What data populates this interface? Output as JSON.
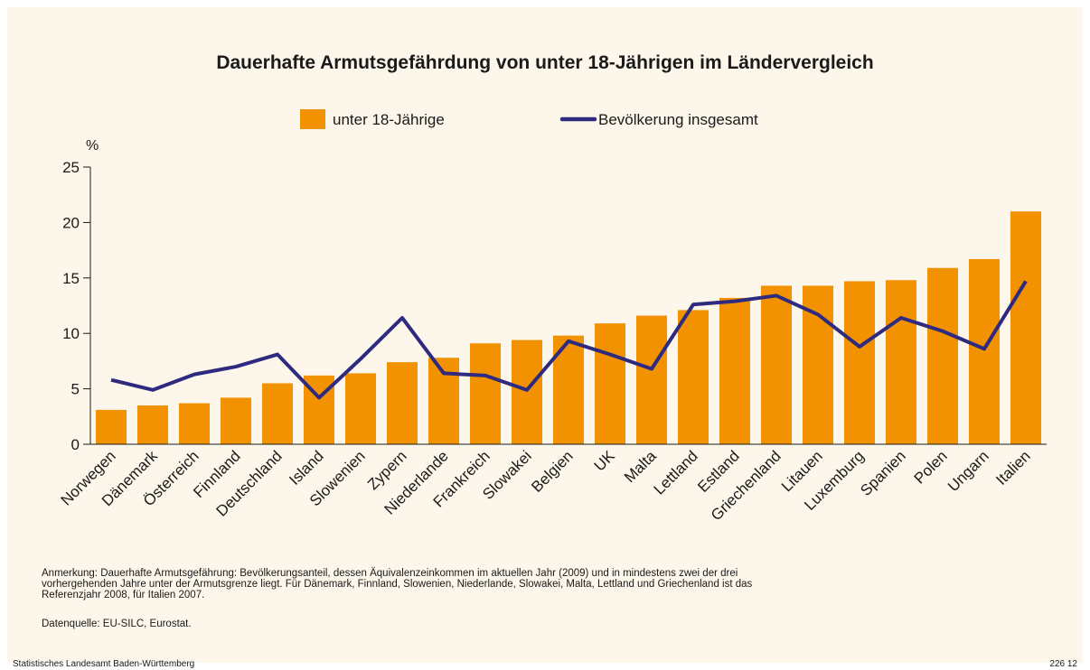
{
  "chart_data": {
    "type": "bar_line",
    "title": "Dauerhafte Armutsgefährdung von unter 18-Jährigen im Ländervergleich",
    "ylabel": "%",
    "categories": [
      "Norwegen",
      "Dänemark",
      "Österreich",
      "Finnland",
      "Deutschland",
      "Island",
      "Slowenien",
      "Zypern",
      "Niederlande",
      "Frankreich",
      "Slowakei",
      "Belgien",
      "UK",
      "Malta",
      "Lettland",
      "Estland",
      "Griechenland",
      "Litauen",
      "Luxemburg",
      "Spanien",
      "Polen",
      "Ungarn",
      "Italien"
    ],
    "series": [
      {
        "name": "unter 18-Jährige",
        "type": "bar",
        "color": "#f39200",
        "values": [
          3.1,
          3.5,
          3.7,
          4.2,
          5.5,
          6.2,
          6.4,
          7.4,
          7.8,
          9.1,
          9.4,
          9.8,
          10.9,
          11.6,
          12.1,
          13.2,
          14.3,
          14.3,
          14.7,
          14.8,
          15.9,
          16.7,
          21.0
        ]
      },
      {
        "name": "Bevölkerung insgesamt",
        "type": "line",
        "color": "#2e2a7f",
        "values": [
          5.8,
          4.9,
          6.3,
          7.0,
          8.1,
          4.2,
          7.7,
          11.4,
          6.4,
          6.2,
          4.9,
          9.3,
          8.1,
          6.8,
          12.6,
          12.9,
          13.4,
          11.7,
          8.8,
          11.4,
          10.2,
          8.6,
          14.7
        ]
      }
    ],
    "ylim": [
      0,
      25
    ],
    "yticks": [
      0,
      5,
      10,
      15,
      20,
      25
    ],
    "note": [
      "Anmerkung: Dauerhafte Armutsgefährung: Bevölkerungsanteil, dessen Äquivalenzeinkommen im aktuellen Jahr (2009) und in mindestens zwei der drei",
      "vorhergehenden Jahre unter der Armutsgrenze liegt. Für Dänemark, Finnland, Slowenien, Niederlande, Slowakei, Malta, Lettland und Griechenland ist das",
      "Referenzjahr 2008, für Italien 2007."
    ],
    "source": "Datenquelle: EU-SILC, Eurostat.",
    "footer_left": "Statistisches Landesamt Baden-Württemberg",
    "footer_right": "226 12"
  }
}
